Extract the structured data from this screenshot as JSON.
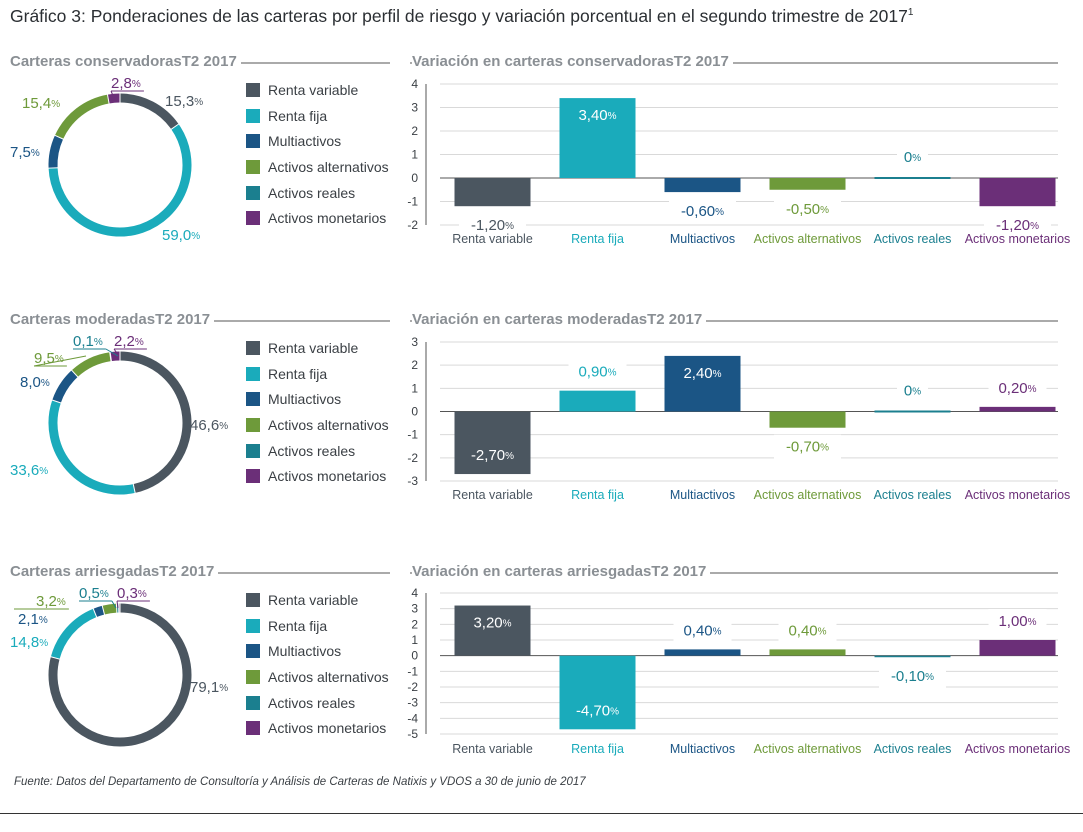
{
  "title": "Gráfico 3: Ponderaciones de las carteras por perfil de riesgo y variación porcentual en el segundo trimestre de 2017",
  "title_superscript": "1",
  "source": "Fuente: Datos del Departamento de Consultoría y Análisis de Carteras de Natixis y VDOS a 30 de junio de 2017",
  "colors": {
    "renta_variable": "#4b5660",
    "renta_fija": "#1aabbb",
    "multiactivos": "#1b5585",
    "activos_alternativos": "#6e9a3a",
    "activos_reales": "#1b7f8f",
    "activos_monetarios": "#6b2f78"
  },
  "legend": [
    {
      "label": "Renta variable",
      "color": "#4b5660"
    },
    {
      "label": "Renta fija",
      "color": "#1aabbb"
    },
    {
      "label": "Multiactivos",
      "color": "#1b5585"
    },
    {
      "label": "Activos alternativos",
      "color": "#6e9a3a"
    },
    {
      "label": "Activos reales",
      "color": "#1b7f8f"
    },
    {
      "label": "Activos monetarios",
      "color": "#6b2f78"
    }
  ],
  "sections": [
    {
      "donut_title": "Carteras conservadorasT2 2017",
      "bar_title": "Variación en carteras conservadorasT2 2017"
    },
    {
      "donut_title": "Carteras moderadasT2 2017",
      "bar_title": "Variación en carteras moderadasT2 2017"
    },
    {
      "donut_title": "Carteras arriesgadasT2 2017",
      "bar_title": "Variación en carteras arriesgadasT2 2017"
    }
  ],
  "chart_data": [
    {
      "type": "pie",
      "title": "Carteras conservadorasT2 2017",
      "categories": [
        "Renta variable",
        "Renta fija",
        "Multiactivos",
        "Activos alternativos",
        "Activos reales",
        "Activos monetarios"
      ],
      "values": [
        15.3,
        59.0,
        7.5,
        15.4,
        0,
        2.8
      ],
      "labels": [
        "15,3",
        "59,0",
        "7,5",
        "15,4",
        "",
        "2,8"
      ],
      "unit": "%"
    },
    {
      "type": "bar",
      "title": "Variación en carteras conservadorasT2 2017",
      "categories": [
        "Renta variable",
        "Renta fija",
        "Multiactivos",
        "Activos alternativos",
        "Activos reales",
        "Activos monetarios"
      ],
      "values": [
        -1.2,
        3.4,
        -0.6,
        -0.5,
        0,
        -1.2
      ],
      "labels": [
        "-1,20",
        "3,40",
        "-0,60",
        "-0,50",
        "0",
        "-1,20"
      ],
      "unit": "%",
      "ylim": [
        -2,
        4
      ],
      "yticks": [
        -2,
        -1,
        0,
        1,
        2,
        3,
        4
      ]
    },
    {
      "type": "pie",
      "title": "Carteras moderadasT2 2017",
      "categories": [
        "Renta variable",
        "Renta fija",
        "Multiactivos",
        "Activos alternativos",
        "Activos reales",
        "Activos monetarios"
      ],
      "values": [
        46.6,
        33.6,
        8.0,
        9.5,
        0.1,
        2.2
      ],
      "labels": [
        "46,6",
        "33,6",
        "8,0",
        "9,5",
        "0,1",
        "2,2"
      ],
      "unit": "%"
    },
    {
      "type": "bar",
      "title": "Variación en carteras moderadasT2 2017",
      "categories": [
        "Renta variable",
        "Renta fija",
        "Multiactivos",
        "Activos alternativos",
        "Activos reales",
        "Activos monetarios"
      ],
      "values": [
        -2.7,
        0.9,
        2.4,
        -0.7,
        0,
        0.2
      ],
      "labels": [
        "-2,70",
        "0,90",
        "2,40",
        "-0,70",
        "0",
        "0,20"
      ],
      "unit": "%",
      "ylim": [
        -3,
        3
      ],
      "yticks": [
        -3,
        -2,
        -1,
        0,
        1,
        2,
        3
      ]
    },
    {
      "type": "pie",
      "title": "Carteras arriesgadasT2 2017",
      "categories": [
        "Renta variable",
        "Renta fija",
        "Multiactivos",
        "Activos alternativos",
        "Activos reales",
        "Activos monetarios"
      ],
      "values": [
        79.1,
        14.8,
        2.1,
        3.2,
        0.5,
        0.3
      ],
      "labels": [
        "79,1",
        "14,8",
        "2,1",
        "3,2",
        "0,5",
        "0,3"
      ],
      "unit": "%"
    },
    {
      "type": "bar",
      "title": "Variación en carteras arriesgadasT2 2017",
      "categories": [
        "Renta variable",
        "Renta fija",
        "Multiactivos",
        "Activos alternativos",
        "Activos reales",
        "Activos monetarios"
      ],
      "values": [
        3.2,
        -4.7,
        0.4,
        0.4,
        -0.1,
        1.0
      ],
      "labels": [
        "3,20",
        "-4,70",
        "0,40",
        "0,40",
        "-0,10",
        "1,00"
      ],
      "unit": "%",
      "ylim": [
        -5,
        4
      ],
      "yticks": [
        -5,
        -4,
        -3,
        -2,
        -1,
        0,
        1,
        2,
        3,
        4
      ]
    }
  ]
}
